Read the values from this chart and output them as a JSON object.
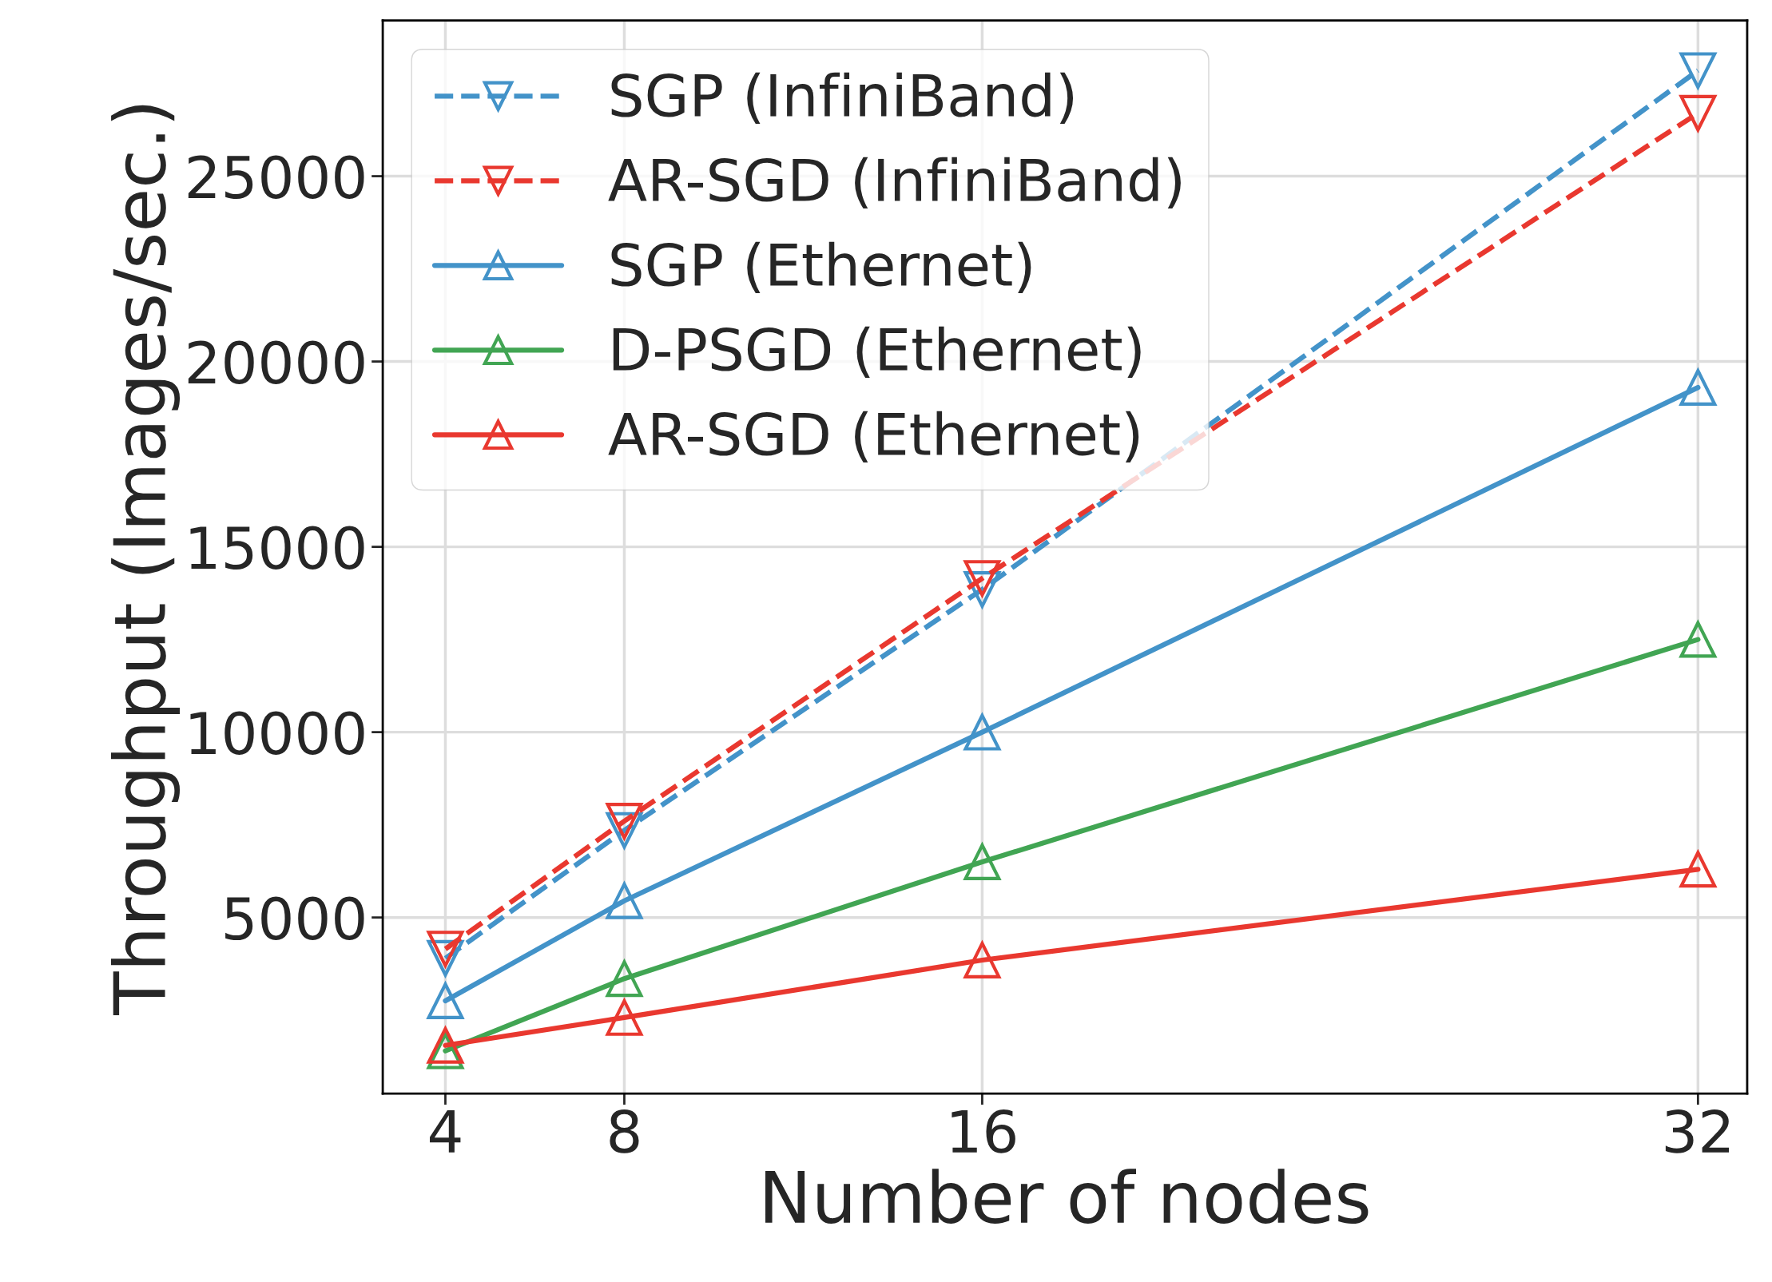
{
  "chart_data": {
    "type": "line",
    "xlabel": "Number of nodes",
    "ylabel": "Throughput (Images/sec.)",
    "x": [
      4,
      8,
      16,
      32
    ],
    "xlim": [
      2.6,
      33.1
    ],
    "xticks": [
      4,
      8,
      16,
      32
    ],
    "ylim": [
      250,
      29200
    ],
    "yticks": [
      5000,
      10000,
      15000,
      20000,
      25000
    ],
    "grid": true,
    "legend": "top left",
    "marker": "triangle",
    "series": [
      {
        "name": "SGP (InfiniBand)",
        "color": "#4393c9",
        "line_style": "dashed",
        "values": [
          3900,
          7350,
          13850,
          27850
        ]
      },
      {
        "name": "AR-SGD (InfiniBand)",
        "color": "#e9382f",
        "line_style": "dashed",
        "values": [
          4150,
          7600,
          14150,
          26700
        ]
      },
      {
        "name": "SGP (Ethernet)",
        "color": "#4393c9",
        "line_style": "solid",
        "values": [
          2750,
          5450,
          10000,
          19300
        ]
      },
      {
        "name": "D-PSGD (Ethernet)",
        "color": "#41a553",
        "line_style": "solid",
        "values": [
          1400,
          3350,
          6500,
          12500
        ]
      },
      {
        "name": "AR-SGD (Ethernet)",
        "color": "#e9382f",
        "line_style": "solid",
        "values": [
          1550,
          2300,
          3850,
          6300
        ]
      }
    ]
  }
}
